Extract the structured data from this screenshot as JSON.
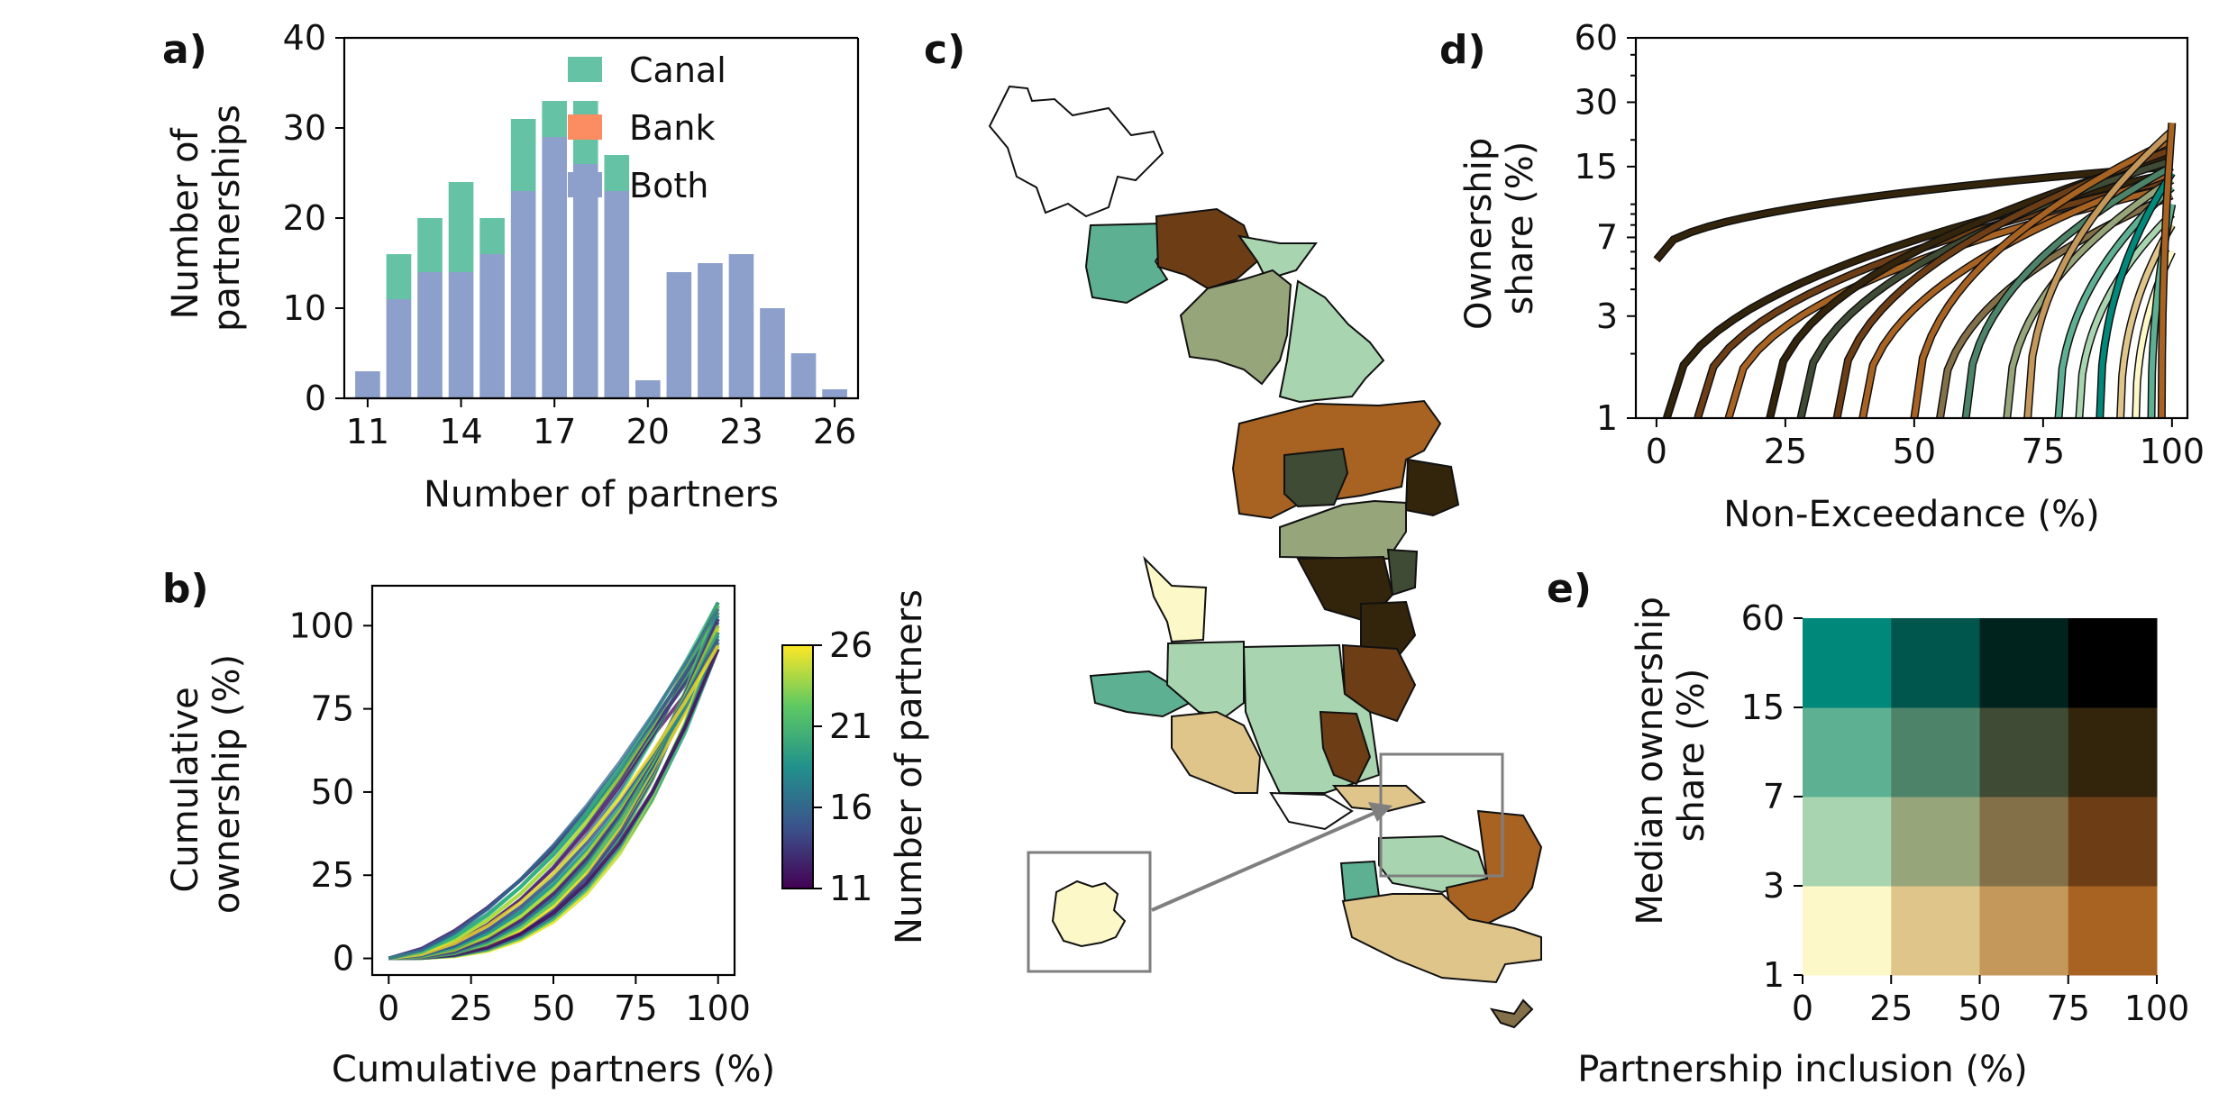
{
  "panel_letters": {
    "a": "a)",
    "b": "b)",
    "c": "c)",
    "d": "d)",
    "e": "e)"
  },
  "colors": {
    "canal": "#66c2a5",
    "bank": "#fc8d62",
    "both": "#8da0cb",
    "map_scale": [
      "#fcf8c8",
      "#e0c58b",
      "#c4975a",
      "#a86323",
      "#a8d5b0",
      "#97a57a",
      "#837049",
      "#6d3e16",
      "#5db192",
      "#4d8469",
      "#3f4b34",
      "#33240c",
      "#00887a",
      "#00564d",
      "#01231e",
      "#000000"
    ]
  },
  "chart_data": [
    {
      "id": "a",
      "type": "bar",
      "stacked": true,
      "categories": [
        11,
        12,
        13,
        14,
        15,
        16,
        17,
        18,
        19,
        20,
        21,
        22,
        23,
        24,
        25,
        26
      ],
      "series": [
        {
          "name": "Both",
          "values": [
            3,
            11,
            14,
            14,
            16,
            23,
            29,
            26,
            23,
            2,
            14,
            15,
            16,
            10,
            5,
            1
          ]
        },
        {
          "name": "Bank",
          "values": [
            0,
            0,
            0,
            0,
            0,
            0,
            0,
            0,
            0,
            0,
            0,
            0,
            0,
            0,
            0,
            0
          ]
        },
        {
          "name": "Canal",
          "values": [
            0,
            5,
            6,
            10,
            4,
            8,
            4,
            7,
            4,
            0,
            0,
            0,
            0,
            0,
            0,
            0
          ]
        }
      ],
      "xticks": [
        "11",
        "14",
        "17",
        "20",
        "23",
        "26"
      ],
      "yticks": [
        "0",
        "10",
        "20",
        "30",
        "40"
      ],
      "xlabel": "Number of partners",
      "ylabel": [
        "Number of",
        "partnerships"
      ],
      "ylim": [
        0,
        40
      ],
      "legend": [
        "Canal",
        "Bank",
        "Both"
      ],
      "legend_position": "top-right"
    },
    {
      "id": "b",
      "type": "line",
      "x": [
        0,
        10,
        20,
        30,
        40,
        50,
        60,
        70,
        80,
        90,
        100
      ],
      "series_note": "many partnership curves coloured by number of partners",
      "xticks": [
        "0",
        "25",
        "50",
        "75",
        "100"
      ],
      "yticks": [
        "0",
        "25",
        "50",
        "75",
        "100"
      ],
      "xlabel": "Cumulative partners (%)",
      "ylabel": [
        "Cumulative",
        "ownership (%)"
      ],
      "xlim": [
        -5,
        105
      ],
      "ylim": [
        -5,
        112
      ],
      "colorbar": {
        "label": "Number of partners",
        "ticks": [
          "11",
          "16",
          "21",
          "26"
        ],
        "range": [
          11,
          26
        ],
        "colormap": "viridis"
      }
    },
    {
      "id": "d",
      "type": "line",
      "yscale": "log",
      "xticks": [
        "0",
        "25",
        "50",
        "75",
        "100"
      ],
      "yticks": [
        "1",
        "3",
        "7",
        "15",
        "30",
        "60"
      ],
      "xlabel": "Non-Exceedance (%)",
      "ylabel": [
        "Ownership",
        "share (%)"
      ],
      "xlim": [
        -4,
        103
      ],
      "ylim": [
        1,
        60
      ]
    },
    {
      "id": "e",
      "type": "heatmap",
      "x_edges": [
        0,
        25,
        50,
        75,
        100
      ],
      "y_edges": [
        "1",
        "3",
        "7",
        "15",
        "60"
      ],
      "xticks": [
        "0",
        "25",
        "50",
        "75",
        "100"
      ],
      "yticks": [
        "1",
        "3",
        "7",
        "15",
        "60"
      ],
      "xlabel": "Partnership inclusion (%)",
      "ylabel": [
        "Median ownership",
        "share (%)"
      ]
    }
  ]
}
